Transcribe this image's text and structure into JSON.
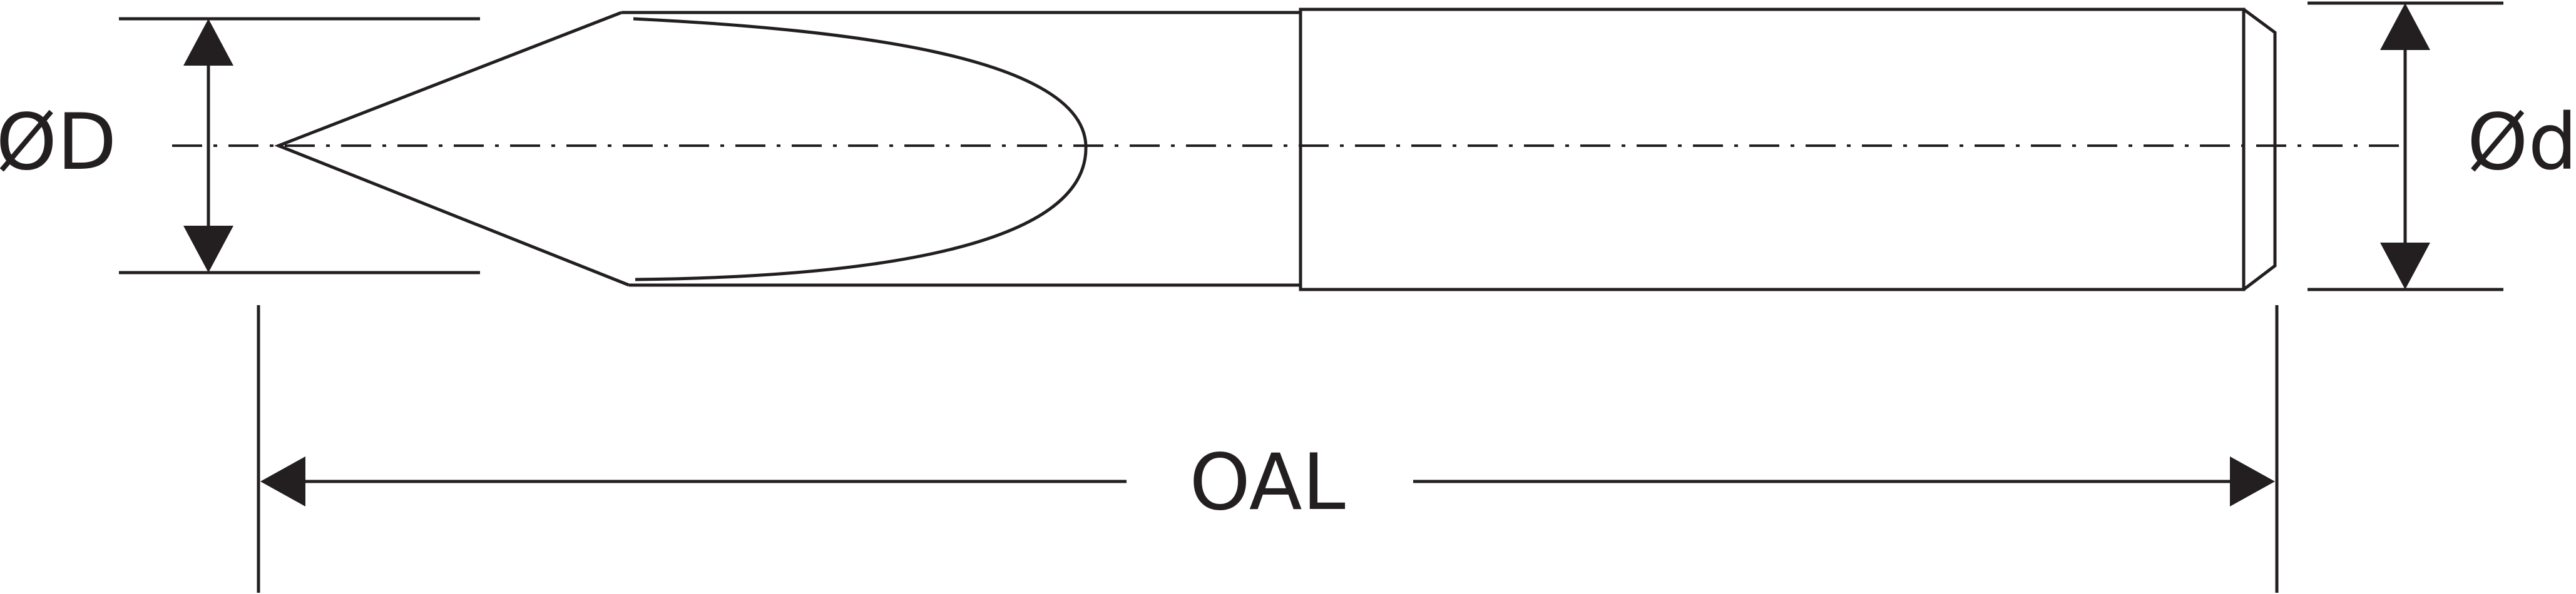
{
  "labels": {
    "cutting_diameter": "ØD",
    "shank_diameter": "Ød",
    "overall_length": "OAL"
  },
  "colors": {
    "line": "#231f20",
    "background": "#ffffff"
  }
}
